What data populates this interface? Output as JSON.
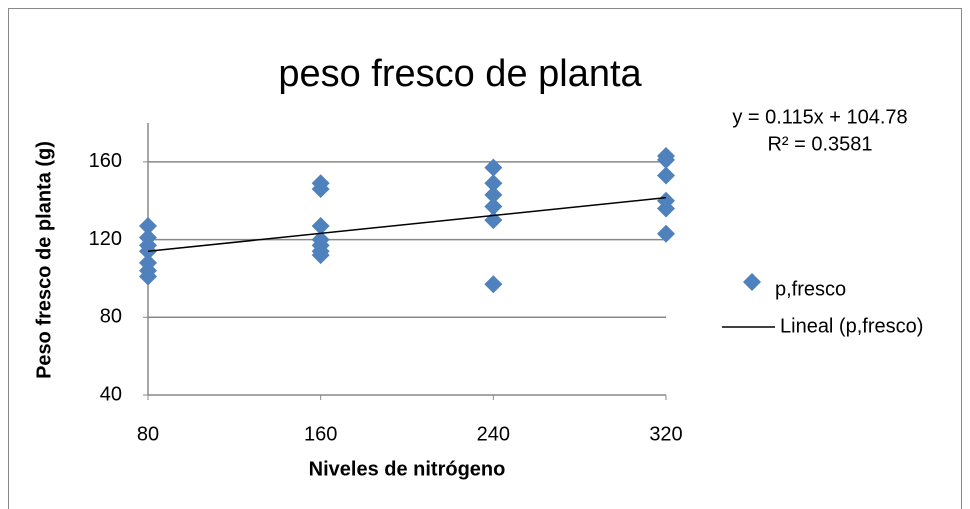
{
  "chart_data": {
    "type": "scatter",
    "title": "peso fresco de planta",
    "x_label": "Niveles de nitrógeno",
    "y_label": "Peso fresco de planta (g)",
    "xlim": [
      80,
      320
    ],
    "xticks": [
      80,
      160,
      240,
      320
    ],
    "ylim": [
      40,
      180
    ],
    "yticks": [
      40,
      80,
      120,
      160
    ],
    "grid": true,
    "series": [
      {
        "name": "p,fresco",
        "color": "#4f81bd",
        "x": [
          80,
          80,
          80,
          80,
          80,
          80,
          80,
          160,
          160,
          160,
          160,
          160,
          160,
          160,
          240,
          240,
          240,
          240,
          240,
          240,
          320,
          320,
          320,
          320,
          320,
          320
        ],
        "values": [
          127,
          121,
          117,
          114,
          108,
          104,
          101,
          149,
          146,
          127,
          120,
          117,
          114,
          112,
          157,
          149,
          143,
          137,
          130,
          97,
          163,
          161,
          153,
          140,
          136,
          123
        ]
      }
    ],
    "trendline": {
      "name": "Lineal (p,fresco)",
      "color": "#000000",
      "slope": 0.115,
      "intercept": 104.78,
      "label": "y = 0.115x + 104.78",
      "r2_label": "R² = 0.3581"
    }
  }
}
